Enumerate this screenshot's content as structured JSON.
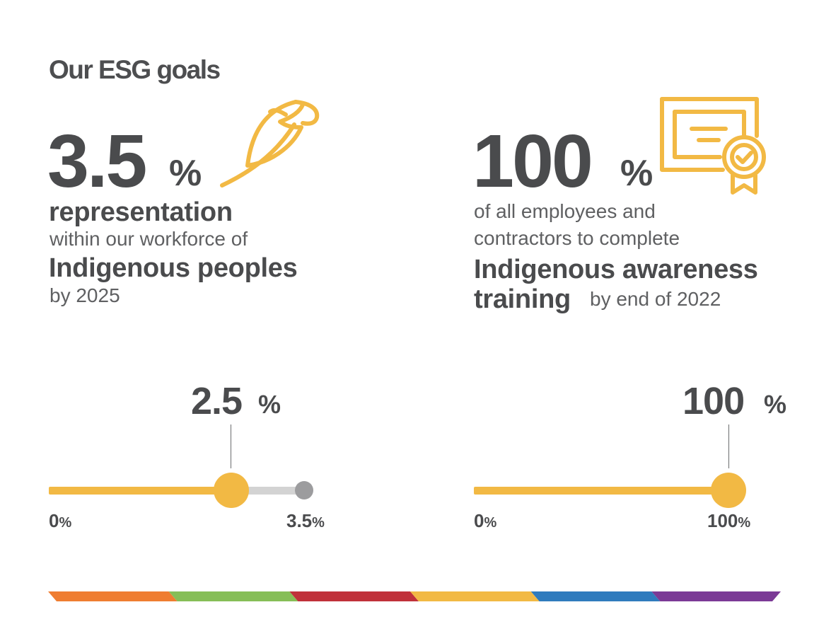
{
  "header": {
    "title": "Our ESG goals"
  },
  "colors": {
    "accent": "#f2b944",
    "text": "#4a4b4d",
    "track_rest": "#d3d3d3",
    "end_marker": "#9c9c9e",
    "stripe": [
      "#ef7d31",
      "#86be57",
      "#c0313a",
      "#f2b944",
      "#2f7bbd",
      "#7b3a96"
    ]
  },
  "goal_representation": {
    "target_value": "3.5",
    "target_unit": "%",
    "line1": "representation",
    "line2": "within our workforce of",
    "line3": "Indigenous peoples",
    "line4": "by 2025",
    "icon": "feather-icon",
    "progress": {
      "current_value": "2.5",
      "current_unit": "%",
      "current": 2.5,
      "min": 0,
      "max": 3.5,
      "min_label": "0",
      "min_unit": "%",
      "max_label": "3.5",
      "max_unit": "%"
    }
  },
  "goal_training": {
    "target_value": "100",
    "target_unit": "%",
    "line1": "of all employees and",
    "line2": "contractors to complete",
    "line3": "Indigenous awareness",
    "line4": "training",
    "line5": "by end of 2022",
    "icon": "certificate-icon",
    "progress": {
      "current_value": "100",
      "current_unit": "%",
      "current": 100,
      "min": 0,
      "max": 100,
      "min_label": "0",
      "min_unit": "%",
      "max_label": "100",
      "max_unit": "%"
    }
  }
}
